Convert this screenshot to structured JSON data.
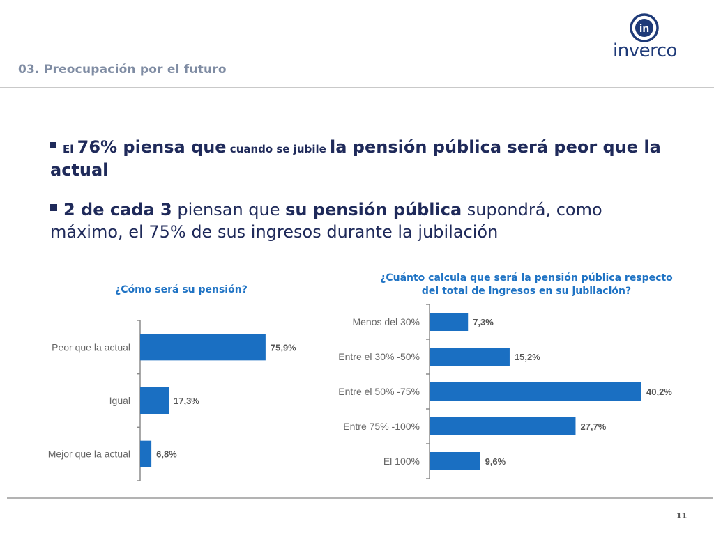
{
  "header": {
    "section_title": "03. Preocupación por el futuro",
    "logo_text": "inverco",
    "logo_mark": "in"
  },
  "bullets": {
    "b1": {
      "p1": "El ",
      "p2": "76% piensa que",
      "p3": " cuando se jubile ",
      "p4": "la pensión pública será peor que la actual"
    },
    "b2": {
      "p1": "2 de cada 3",
      "p2": " piensan que ",
      "p3": "su pensión pública",
      "p4": " supondrá, como máximo, el 75% de sus ingresos durante la jubilación"
    }
  },
  "colors": {
    "bar": "#1a6fc2",
    "title_blue": "#1f73c4",
    "text_dark": "#1f2a5a"
  },
  "chart_data": [
    {
      "type": "bar",
      "orientation": "horizontal",
      "title": "¿Cómo será su pensión?",
      "categories": [
        "Peor que la actual",
        "Igual",
        "Mejor que la actual"
      ],
      "values": [
        75.9,
        17.3,
        6.8
      ],
      "value_labels": [
        "75,9%",
        "17,3%",
        "6,8%"
      ],
      "xlim": [
        0,
        100
      ]
    },
    {
      "type": "bar",
      "orientation": "horizontal",
      "title": "¿Cuánto calcula que será la pensión pública respecto del total de ingresos en su jubilación?",
      "title_lines": [
        "¿Cuánto calcula que será la pensión pública respecto",
        "del total de ingresos en su jubilación?"
      ],
      "categories": [
        "Menos del 30%",
        "Entre el 30% -50%",
        "Entre el 50% -75%",
        "Entre 75% -100%",
        "El 100%"
      ],
      "values": [
        7.3,
        15.2,
        40.2,
        27.7,
        9.6
      ],
      "value_labels": [
        "7,3%",
        "15,2%",
        "40,2%",
        "27,7%",
        "9,6%"
      ],
      "xlim": [
        0,
        40.2
      ]
    }
  ],
  "footer": {
    "page_number": "11"
  }
}
